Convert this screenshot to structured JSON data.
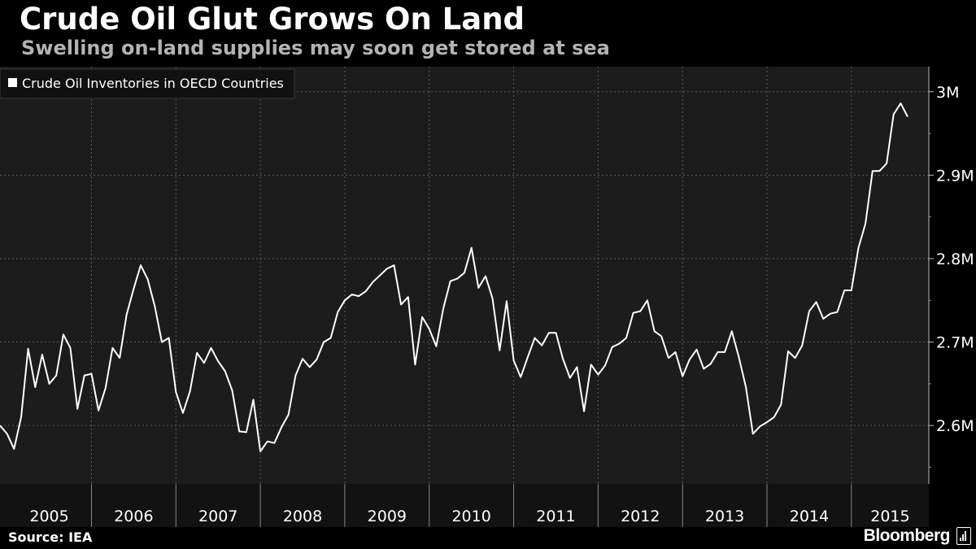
{
  "header": {
    "title": "Crude Oil Glut Grows On Land",
    "subtitle": "Swelling on-land supplies may soon get stored at sea"
  },
  "footer": {
    "source": "Source: IEA",
    "brand": "Bloomberg"
  },
  "colors": {
    "background": "#000000",
    "plot_background": "#1c1c1c",
    "line": "#ffffff",
    "grid": "#5a5a5a",
    "legend_bg": "#111111"
  },
  "chart_data": {
    "type": "line",
    "title": "Crude Oil Glut Grows On Land",
    "subtitle": "Swelling on-land supplies may soon get stored at sea",
    "legend": {
      "entries": [
        "Crude Oil Inventories in OECD Countries"
      ],
      "placement": "top-left"
    },
    "grid": true,
    "y_axis": {
      "position": "right",
      "ticks": [
        2600000,
        2700000,
        2800000,
        2900000,
        3000000
      ],
      "tick_labels": [
        "2.6M",
        "2.7M",
        "2.8M",
        "2.9M",
        "3M"
      ],
      "ylim": [
        2530000,
        3030000
      ]
    },
    "x_axis": {
      "years": [
        "2005",
        "2006",
        "2007",
        "2008",
        "2009",
        "2010",
        "2011",
        "2012",
        "2013",
        "2014",
        "2015"
      ],
      "xlim": [
        "2004-12",
        "2015-12"
      ]
    },
    "series": [
      {
        "name": "Crude Oil Inventories in OECD Countries",
        "start": "2004-12",
        "frequency": "monthly",
        "values": [
          2600000,
          2590000,
          2572000,
          2610000,
          2692000,
          2646000,
          2685000,
          2650000,
          2660000,
          2709000,
          2693000,
          2620000,
          2660000,
          2662000,
          2618000,
          2645000,
          2693000,
          2681000,
          2733000,
          2764000,
          2792000,
          2775000,
          2743000,
          2700000,
          2705000,
          2640000,
          2615000,
          2641000,
          2687000,
          2675000,
          2693000,
          2677000,
          2665000,
          2642000,
          2593000,
          2592000,
          2631000,
          2569000,
          2581000,
          2579000,
          2598000,
          2613000,
          2660000,
          2680000,
          2670000,
          2679000,
          2700000,
          2705000,
          2736000,
          2750000,
          2757000,
          2755000,
          2761000,
          2772000,
          2780000,
          2788000,
          2792000,
          2745000,
          2754000,
          2673000,
          2730000,
          2716000,
          2695000,
          2740000,
          2773000,
          2776000,
          2783000,
          2813000,
          2765000,
          2779000,
          2752000,
          2690000,
          2749000,
          2678000,
          2658000,
          2682000,
          2705000,
          2696000,
          2711000,
          2711000,
          2680000,
          2657000,
          2670000,
          2617000,
          2673000,
          2661000,
          2672000,
          2694000,
          2698000,
          2705000,
          2735000,
          2737000,
          2750000,
          2713000,
          2707000,
          2681000,
          2688000,
          2659000,
          2679000,
          2691000,
          2668000,
          2674000,
          2688000,
          2688000,
          2713000,
          2682000,
          2646000,
          2590000,
          2599000,
          2604000,
          2610000,
          2625000,
          2689000,
          2681000,
          2696000,
          2737000,
          2748000,
          2728000,
          2734000,
          2736000,
          2762000,
          2762000,
          2813000,
          2842000,
          2905000,
          2905000,
          2914000,
          2973000,
          2986000,
          2970000
        ]
      }
    ]
  }
}
